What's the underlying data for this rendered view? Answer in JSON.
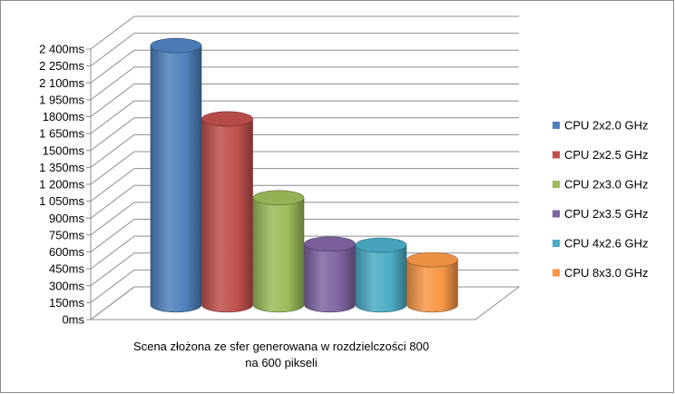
{
  "chart_data": {
    "type": "bar",
    "style": "3d-cylinder",
    "categories": [
      ""
    ],
    "series": [
      {
        "name": "CPU 2x2.0 GHz",
        "values": [
          2300
        ],
        "color": "#4f81bd"
      },
      {
        "name": "CPU 2x2.5 GHz",
        "values": [
          1650
        ],
        "color": "#c0504d"
      },
      {
        "name": "CPU 2x3.0 GHz",
        "values": [
          950
        ],
        "color": "#9bbb59"
      },
      {
        "name": "CPU 2x3.5 GHz",
        "values": [
          540
        ],
        "color": "#8064a2"
      },
      {
        "name": "CPU 4x2.6 GHz",
        "values": [
          530
        ],
        "color": "#4bacc6"
      },
      {
        "name": "CPU 8x3.0 GHz",
        "values": [
          400
        ],
        "color": "#f79646"
      }
    ],
    "xlabel_lines": [
      "Scena złożona ze sfer generowana  w rozdzielczości 800",
      "na 600 pikseli"
    ],
    "ylabel": "",
    "ylim": [
      0,
      2400
    ],
    "ytick_step": 150,
    "y_ticks": [
      "0ms",
      "150ms",
      "300ms",
      "450ms",
      "600ms",
      "750ms",
      "900ms",
      "1 050ms",
      "1 200ms",
      "1 350ms",
      "1500ms",
      "1 650ms",
      "1800ms",
      "1 950ms",
      "2 100ms",
      "2 250ms",
      "2 400ms"
    ],
    "grid": true,
    "legend_position": "right"
  }
}
